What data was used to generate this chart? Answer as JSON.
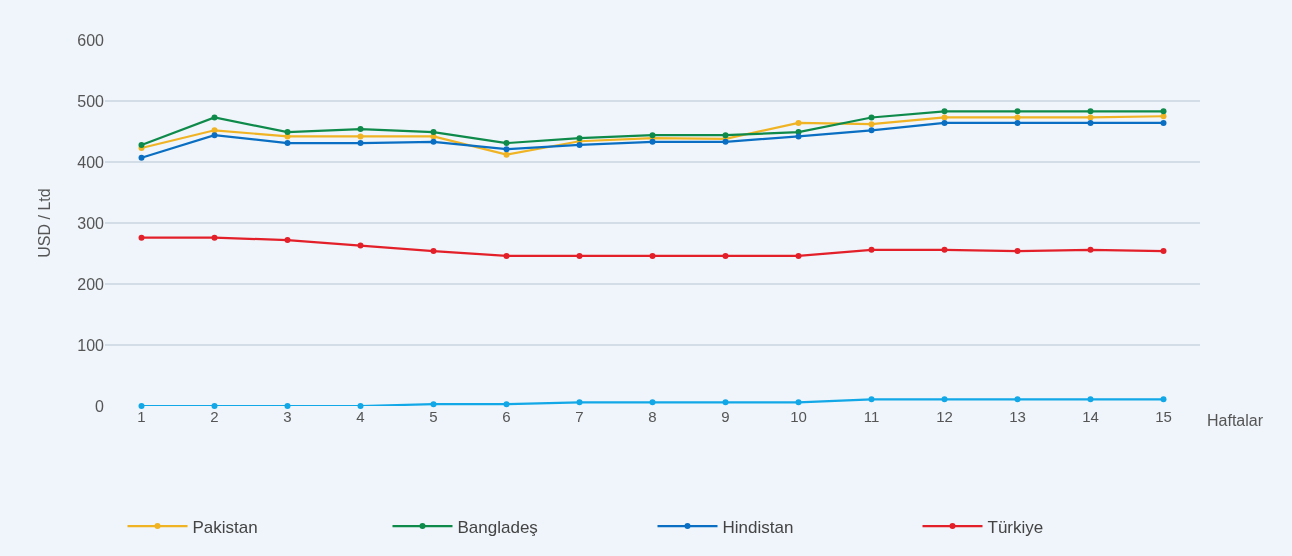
{
  "chart_data": {
    "type": "line",
    "xlabel": "Haftalar",
    "ylabel": "USD / Ltd",
    "x": [
      1,
      2,
      3,
      4,
      5,
      6,
      7,
      8,
      9,
      10,
      11,
      12,
      13,
      14,
      15
    ],
    "xlim": [
      0.5,
      15.5
    ],
    "xticks": [
      1,
      2,
      3,
      4,
      5,
      6,
      7,
      8,
      9,
      10,
      11,
      12,
      13,
      14,
      15
    ],
    "ylim": [
      0,
      600
    ],
    "yticks": [
      0,
      100,
      200,
      300,
      400,
      500,
      600
    ],
    "grid": "y",
    "legend": "bottom",
    "marker": "circle",
    "line_style": "solid",
    "series": [
      {
        "name": "Pakistan",
        "color": "#f0b323",
        "values": [
          423,
          452,
          442,
          442,
          442,
          412,
          434,
          439,
          438,
          464,
          462,
          473,
          473,
          473,
          475
        ]
      },
      {
        "name": "Bangladeş",
        "color": "#0e8a4a",
        "values": [
          428,
          473,
          449,
          454,
          449,
          431,
          439,
          444,
          444,
          449,
          473,
          483,
          483,
          483,
          483
        ]
      },
      {
        "name": "Hindistan",
        "color": "#0a6fc2",
        "values": [
          407,
          444,
          431,
          431,
          433,
          421,
          428,
          433,
          433,
          442,
          452,
          464,
          464,
          464,
          464
        ]
      },
      {
        "name": "Türkiye",
        "color": "#e3202a",
        "values": [
          276,
          276,
          272,
          263,
          254,
          246,
          246,
          246,
          246,
          246,
          256,
          256,
          254,
          256,
          254
        ]
      },
      {
        "color": "#12a7e6",
        "values": [
          0,
          0,
          0,
          0,
          3,
          3,
          6,
          6,
          6,
          6,
          11,
          11,
          11,
          11,
          11
        ]
      }
    ]
  }
}
